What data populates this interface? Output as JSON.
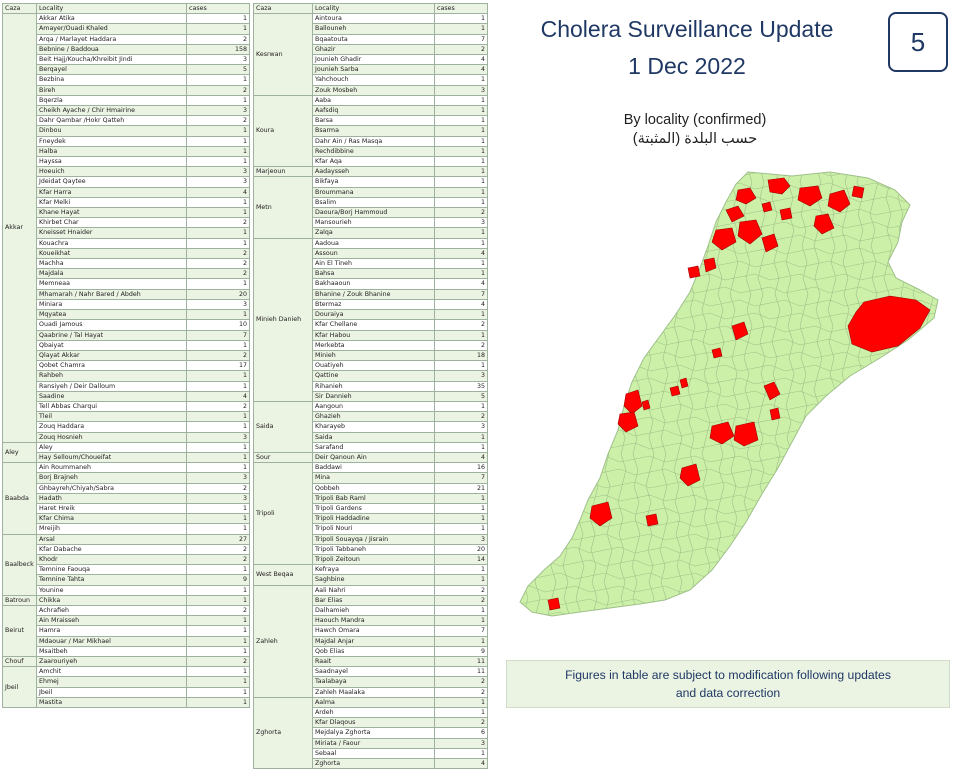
{
  "header": {
    "title_line1": "Cholera Surveillance Update",
    "title_line2": "1 Dec 2022",
    "page_number": "5",
    "subtitle_en": "By locality (confirmed)",
    "subtitle_ar": "حسب البلدة (المثبتة)"
  },
  "note": {
    "line1": "Figures in table are subject to modification following updates",
    "line2": "and data correction"
  },
  "table_headers": {
    "caza": "Caza",
    "locality": "Locality",
    "cases": "cases"
  },
  "left_table": [
    {
      "caza": "Akkar",
      "rows": [
        [
          "Akkar Atika",
          "1"
        ],
        [
          "Amayer/Ouadi Khaled",
          "1"
        ],
        [
          "Arqa / Marlayet Haddara",
          "2"
        ],
        [
          "Bebnine / Baddoua",
          "158"
        ],
        [
          "Beit Hajj/Koucha/Khreibit Jindi",
          "3"
        ],
        [
          "Berqayel",
          "5"
        ],
        [
          "Bezbina",
          "1"
        ],
        [
          "Bireh",
          "2"
        ],
        [
          "Bqerzla",
          "1"
        ],
        [
          "Cheikh Ayache / Chir Hmairine",
          "3"
        ],
        [
          "Dahr Qambar /Hokr Qatteh",
          "2"
        ],
        [
          "Dinbou",
          "1"
        ],
        [
          "Fneydek",
          "1"
        ],
        [
          "Halba",
          "1"
        ],
        [
          "Hayssa",
          "1"
        ],
        [
          "Hoeuich",
          "3"
        ],
        [
          "Jdeidat Qaytee",
          "3"
        ],
        [
          "Kfar Harra",
          "4"
        ],
        [
          "Kfar Melki",
          "1"
        ],
        [
          "Khane Hayat",
          "1"
        ],
        [
          "Khirbet Char",
          "2"
        ],
        [
          "Kneisset Hnaider",
          "1"
        ],
        [
          "Kouachra",
          "1"
        ],
        [
          "Koueikhat",
          "2"
        ],
        [
          "Machha",
          "2"
        ],
        [
          "Majdala",
          "2"
        ],
        [
          "Memneaa",
          "1"
        ],
        [
          "Mhamarah / Nahr Bared / Abdeh",
          "20"
        ],
        [
          "Miniara",
          "3"
        ],
        [
          "Mqyatea",
          "1"
        ],
        [
          "Ouadi Jamous",
          "10"
        ],
        [
          "Qaabrine / Tal Hayat",
          "7"
        ],
        [
          "Qbaiyat",
          "1"
        ],
        [
          "Qlayat Akkar",
          "2"
        ],
        [
          "Qobet Chamra",
          "17"
        ],
        [
          "Rahbeh",
          "1"
        ],
        [
          "Ransiyeh / Deir Dalloum",
          "1"
        ],
        [
          "Saadine",
          "4"
        ],
        [
          "Tell Abbas Charqui",
          "2"
        ],
        [
          "Tleil",
          "1"
        ],
        [
          "Zouq Haddara",
          "1"
        ],
        [
          "Zouq Hosnieh",
          "3"
        ]
      ]
    },
    {
      "caza": "Aley",
      "rows": [
        [
          "Aley",
          "1"
        ],
        [
          "Hay Selloum/Choueifat",
          "1"
        ]
      ]
    },
    {
      "caza": "Baabda",
      "rows": [
        [
          "Ain Roummaneh",
          "1"
        ],
        [
          "Borj Brajneh",
          "3"
        ],
        [
          "Ghbayreh/Chiyah/Sabra",
          "2"
        ],
        [
          "Hadath",
          "3"
        ],
        [
          "Haret Hreik",
          "1"
        ],
        [
          "Kfar Chima",
          "1"
        ],
        [
          "Mreijih",
          "1"
        ]
      ]
    },
    {
      "caza": "Baalbeck",
      "rows": [
        [
          "Arsal",
          "27"
        ],
        [
          "Kfar Dabache",
          "2"
        ],
        [
          "Khodr",
          "2"
        ],
        [
          "Temnine Faouqa",
          "1"
        ],
        [
          "Temnine Tahta",
          "9"
        ],
        [
          "Younine",
          "1"
        ]
      ]
    },
    {
      "caza": "Batroun",
      "rows": [
        [
          "Chikka",
          "1"
        ]
      ]
    },
    {
      "caza": "Beirut",
      "rows": [
        [
          "Achrafieh",
          "2"
        ],
        [
          "Ain Mraisseh",
          "1"
        ],
        [
          "Hamra",
          "1"
        ],
        [
          "Mdaouar / Mar Mikhael",
          "1"
        ],
        [
          "Msaitbeh",
          "1"
        ]
      ]
    },
    {
      "caza": "Chouf",
      "rows": [
        [
          "Zaarouriyeh",
          "2"
        ]
      ]
    },
    {
      "caza": "Jbeil",
      "rows": [
        [
          "Amchit",
          "1"
        ],
        [
          "Ehmej",
          "1"
        ],
        [
          "Jbeil",
          "1"
        ],
        [
          "Mastita",
          "1"
        ]
      ]
    }
  ],
  "right_table": [
    {
      "caza": "Kesrwan",
      "rows": [
        [
          "Aintoura",
          "1"
        ],
        [
          "Ballouneh",
          "1"
        ],
        [
          "Bqaatouta",
          "7"
        ],
        [
          "Ghazir",
          "2"
        ],
        [
          "Jounieh Ghadir",
          "4"
        ],
        [
          "Jounieh Sarba",
          "4"
        ],
        [
          "Yahchouch",
          "1"
        ],
        [
          "Zouk Mosbeh",
          "3"
        ]
      ]
    },
    {
      "caza": "Koura",
      "rows": [
        [
          "Aaba",
          "1"
        ],
        [
          "Aafsdiq",
          "1"
        ],
        [
          "Barsa",
          "1"
        ],
        [
          "Bsarma",
          "1"
        ],
        [
          "Dahr Ain / Ras Masqa",
          "1"
        ],
        [
          "Rechdibbine",
          "1"
        ],
        [
          "Kfar Aqa",
          "1"
        ]
      ]
    },
    {
      "caza": "Marjeoun",
      "rows": [
        [
          "Aadaysseh",
          "1"
        ]
      ]
    },
    {
      "caza": "Metn",
      "rows": [
        [
          "Bikfaya",
          "1"
        ],
        [
          "Broummana",
          "1"
        ],
        [
          "Bsalim",
          "1"
        ],
        [
          "Daoura/Borj Hammoud",
          "2"
        ],
        [
          "Mansourieh",
          "3"
        ],
        [
          "Zalqa",
          "1"
        ]
      ]
    },
    {
      "caza": "Minieh Danieh",
      "rows": [
        [
          "Aadoua",
          "1"
        ],
        [
          "Assoun",
          "4"
        ],
        [
          "Ain El Tineh",
          "1"
        ],
        [
          "Bahsa",
          "1"
        ],
        [
          "Bakhaaoun",
          "4"
        ],
        [
          "Bhanine / Zouk Bhanine",
          "7"
        ],
        [
          "Btermaz",
          "4"
        ],
        [
          "Douraiya",
          "1"
        ],
        [
          "Kfar Chellane",
          "2"
        ],
        [
          "Kfar Habou",
          "1"
        ],
        [
          "Merkebta",
          "2"
        ],
        [
          "Minieh",
          "18"
        ],
        [
          "Ouatiyeh",
          "1"
        ],
        [
          "Qattine",
          "3"
        ],
        [
          "Rihanieh",
          "35"
        ],
        [
          "Sir Dannieh",
          "5"
        ]
      ]
    },
    {
      "caza": "Saida",
      "rows": [
        [
          "Aangoun",
          "1"
        ],
        [
          "Ghazieh",
          "2"
        ],
        [
          "Kharayeb",
          "3"
        ],
        [
          "Saida",
          "1"
        ],
        [
          "Sarafand",
          "1"
        ]
      ]
    },
    {
      "caza": "Sour",
      "rows": [
        [
          "Deir Qanoun Ain",
          "4"
        ]
      ]
    },
    {
      "caza": "Tripoli",
      "rows": [
        [
          "Baddawi",
          "16"
        ],
        [
          "Mina",
          "7"
        ],
        [
          "Qobbeh",
          "21"
        ],
        [
          "Tripoli Bab Raml",
          "1"
        ],
        [
          "Tripoli Gardens",
          "1"
        ],
        [
          "Tripoli Haddadine",
          "1"
        ],
        [
          "Tripoli Nouri",
          "1"
        ],
        [
          "Tripoli Souayqa / Jisrain",
          "3"
        ],
        [
          "Tripoli Tabbaneh",
          "20"
        ],
        [
          "Tripoli Zeitoun",
          "14"
        ]
      ]
    },
    {
      "caza": "West Beqaa",
      "rows": [
        [
          "Kefraya",
          "1"
        ],
        [
          "Saghbine",
          "1"
        ]
      ]
    },
    {
      "caza": "Zahleh",
      "rows": [
        [
          "Aali Nahri",
          "2"
        ],
        [
          "Bar Elias",
          "2"
        ],
        [
          "Dalhamieh",
          "1"
        ],
        [
          "Haouch Mandra",
          "1"
        ],
        [
          "Hawch Omara",
          "7"
        ],
        [
          "Majdal Anjar",
          "1"
        ],
        [
          "Qob Elias",
          "9"
        ],
        [
          "Raait",
          "11"
        ],
        [
          "Saadnayel",
          "11"
        ],
        [
          "Taalabaya",
          "2"
        ],
        [
          "Zahleh Maalaka",
          "2"
        ]
      ]
    },
    {
      "caza": "Zghorta",
      "rows": [
        [
          "Aalma",
          "1"
        ],
        [
          "Ardeh",
          "1"
        ],
        [
          "Kfar Dlaqous",
          "2"
        ],
        [
          "Mejdalya Zghorta",
          "6"
        ],
        [
          "Miriata / Faour",
          "3"
        ],
        [
          "Sebaal",
          "1"
        ],
        [
          "Zghorta",
          "4"
        ]
      ]
    }
  ],
  "map": {
    "base_color": "#cdf0a8",
    "border_color": "#9ec08a",
    "affected_color": "#ff0000"
  }
}
